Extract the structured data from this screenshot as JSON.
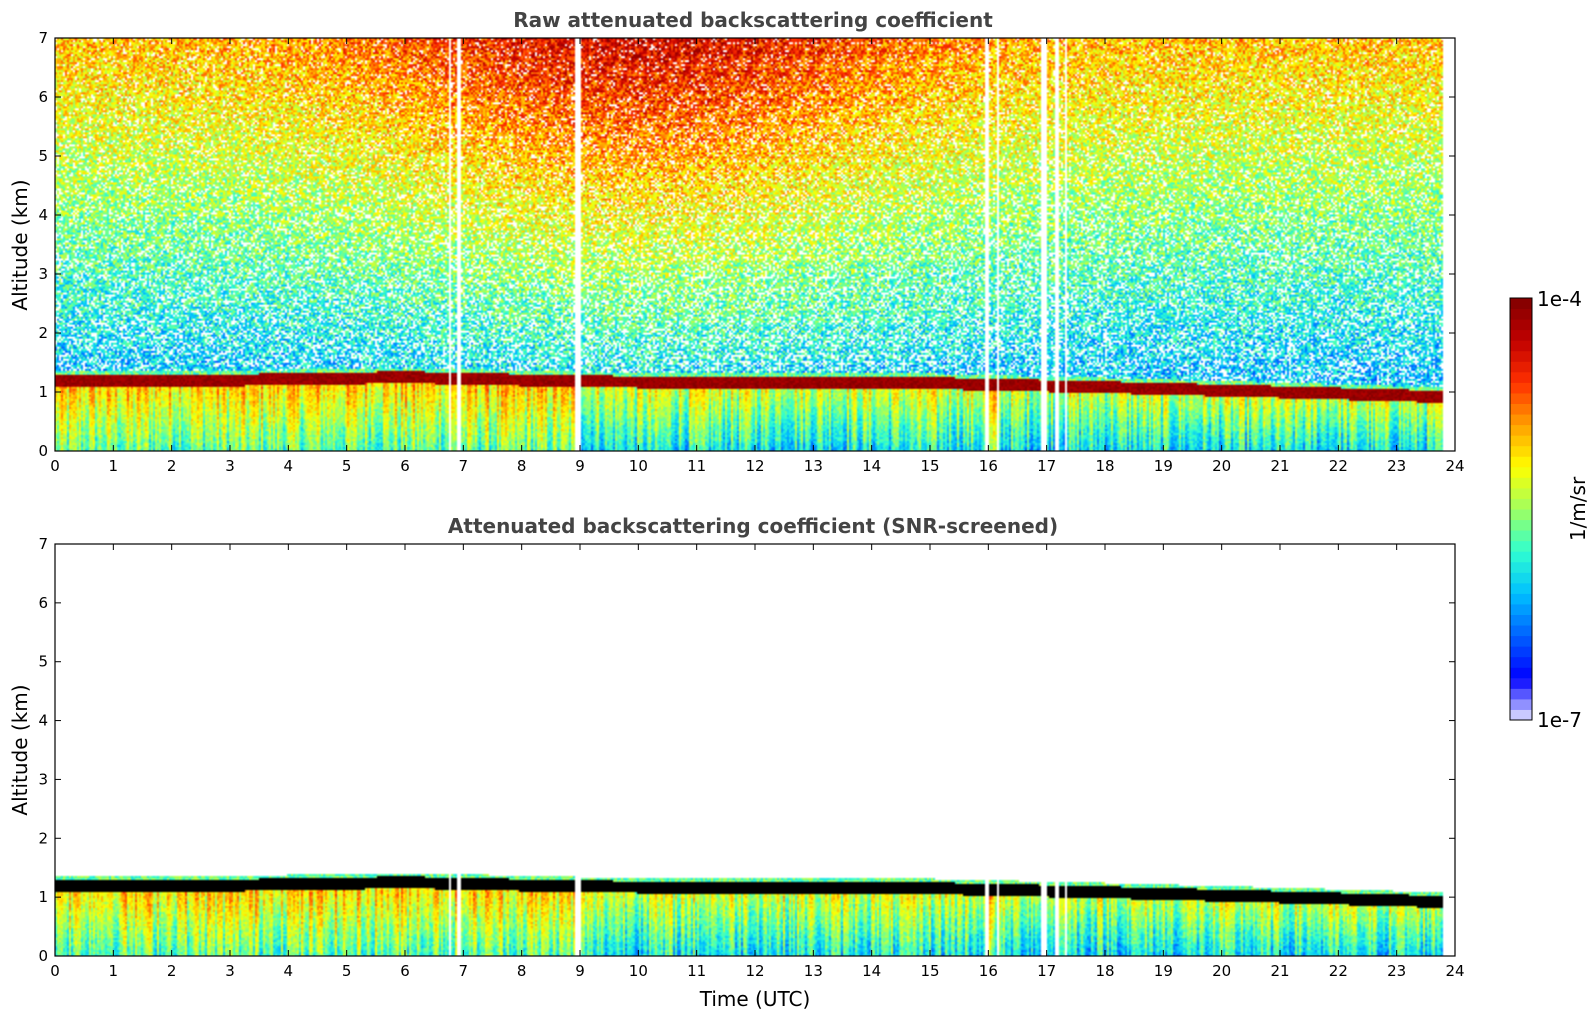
{
  "colors": {
    "jet": [
      "#ffffff",
      "#0000ff",
      "#0060ff",
      "#00c0ff",
      "#30ffd0",
      "#a0ff60",
      "#ffff00",
      "#ffa000",
      "#ff3000",
      "#c00000",
      "#800000"
    ],
    "cap_black": "#000000",
    "title_color": "#444444"
  },
  "chart_data": [
    {
      "type": "heatmap",
      "title": "Raw attenuated backscattering coefficient",
      "xlabel": "",
      "ylabel": "Altitude (km)",
      "xlim": [
        0,
        24
      ],
      "ylim": [
        0,
        7
      ],
      "x_ticks": [
        "0",
        "1",
        "2",
        "3",
        "4",
        "5",
        "6",
        "7",
        "8",
        "9",
        "10",
        "11",
        "12",
        "13",
        "14",
        "15",
        "16",
        "17",
        "18",
        "19",
        "20",
        "21",
        "22",
        "23",
        "24"
      ],
      "y_ticks": [
        "0",
        "1",
        "2",
        "3",
        "4",
        "5",
        "6",
        "7"
      ],
      "data_gaps_hours": [
        [
          6.75,
          6.8
        ],
        [
          6.9,
          6.95
        ],
        [
          8.9,
          9.02
        ],
        [
          15.95,
          16.0
        ],
        [
          16.15,
          16.2
        ],
        [
          16.9,
          17.02
        ],
        [
          17.15,
          17.2
        ],
        [
          17.3,
          17.35
        ]
      ],
      "layer_top_km": [
        [
          0,
          1.3
        ],
        [
          3,
          1.3
        ],
        [
          6,
          1.35
        ],
        [
          9,
          1.28
        ],
        [
          12,
          1.25
        ],
        [
          15,
          1.25
        ],
        [
          18,
          1.18
        ],
        [
          21,
          1.1
        ],
        [
          23.8,
          1.02
        ]
      ],
      "surface_band_km": [
        0,
        1.1
      ],
      "screened": false,
      "colorbar": {
        "range": [
          "1e-7",
          "1e-4"
        ],
        "label": "1/m/sr"
      }
    },
    {
      "type": "heatmap",
      "title": "Attenuated backscattering coefficient (SNR-screened)",
      "xlabel": "Time (UTC)",
      "ylabel": "Altitude (km)",
      "xlim": [
        0,
        24
      ],
      "ylim": [
        0,
        7
      ],
      "x_ticks": [
        "0",
        "1",
        "2",
        "3",
        "4",
        "5",
        "6",
        "7",
        "8",
        "9",
        "10",
        "11",
        "12",
        "13",
        "14",
        "15",
        "16",
        "17",
        "18",
        "19",
        "20",
        "21",
        "22",
        "23",
        "24"
      ],
      "y_ticks": [
        "0",
        "1",
        "2",
        "3",
        "4",
        "5",
        "6",
        "7"
      ],
      "data_gaps_hours": [
        [
          6.75,
          6.8
        ],
        [
          6.9,
          6.95
        ],
        [
          8.9,
          9.02
        ],
        [
          15.95,
          16.0
        ],
        [
          16.15,
          16.2
        ],
        [
          16.9,
          17.02
        ],
        [
          17.15,
          17.2
        ],
        [
          17.3,
          17.35
        ]
      ],
      "layer_top_km": [
        [
          0,
          1.3
        ],
        [
          3,
          1.3
        ],
        [
          6,
          1.35
        ],
        [
          9,
          1.28
        ],
        [
          12,
          1.25
        ],
        [
          15,
          1.25
        ],
        [
          18,
          1.18
        ],
        [
          21,
          1.1
        ],
        [
          23.8,
          1.02
        ]
      ],
      "surface_band_km": [
        0,
        1.1
      ],
      "screened": true,
      "colorbar": {
        "range": [
          "1e-7",
          "1e-4"
        ],
        "label": "1/m/sr"
      }
    }
  ],
  "colorbar": {
    "max_label": "1e-4",
    "min_label": "1e-7",
    "unit_label": "1/m/sr"
  }
}
